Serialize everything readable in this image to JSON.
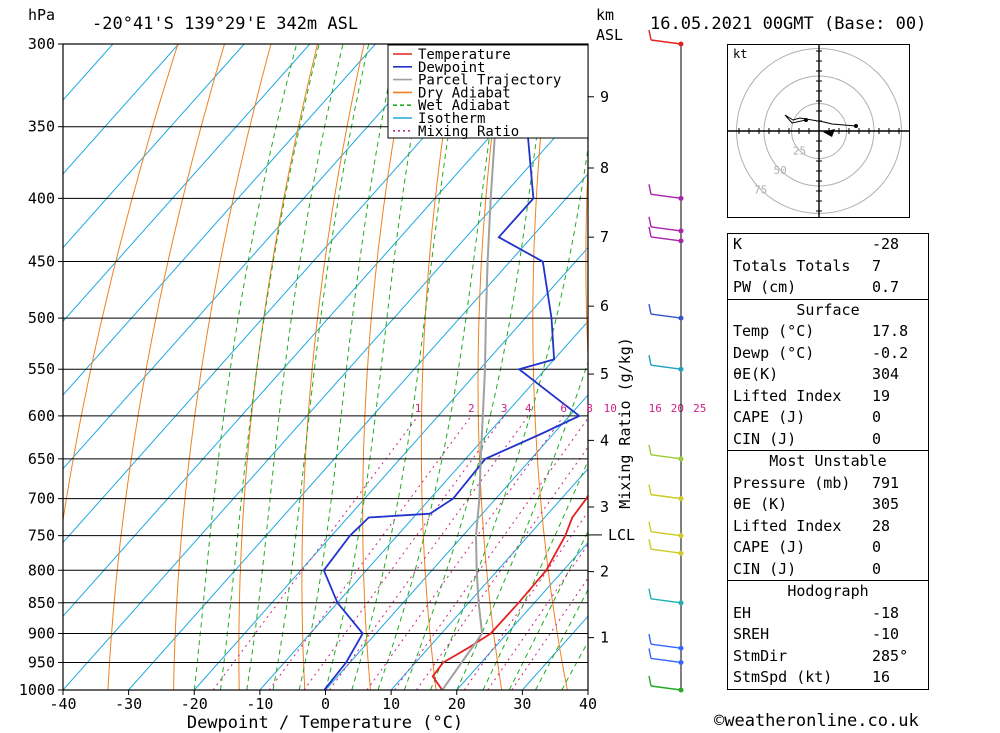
{
  "header": {
    "hpa_label": "hPa",
    "location": "-20°41'S 139°29'E 342m ASL",
    "km_label": "km",
    "asl_label": "ASL",
    "datetime": "16.05.2021 00GMT (Base: 00)"
  },
  "chart_data": {
    "type": "skew-t",
    "xlabel": "Dewpoint / Temperature (°C)",
    "ylabel_left": "hPa",
    "ylabel_mixing": "Mixing Ratio (g/kg)",
    "x_ticks": [
      -40,
      -30,
      -20,
      -10,
      0,
      10,
      20,
      30,
      40
    ],
    "pressure_levels": [
      300,
      350,
      400,
      450,
      500,
      550,
      600,
      650,
      700,
      750,
      800,
      850,
      900,
      950,
      1000
    ],
    "km_ticks": [
      {
        "label": "1",
        "p": 907
      },
      {
        "label": "2",
        "p": 802
      },
      {
        "label": "3",
        "p": 711
      },
      {
        "label": "4",
        "p": 628
      },
      {
        "label": "5",
        "p": 555
      },
      {
        "label": "6",
        "p": 489
      },
      {
        "label": "7",
        "p": 430
      },
      {
        "label": "8",
        "p": 378
      },
      {
        "label": "9",
        "p": 331
      }
    ],
    "lcl": {
      "label": "LCL",
      "p": 749
    },
    "mixing_ratio_labels": [
      "1",
      "2",
      "3",
      "4",
      "6",
      "8",
      "10",
      "16",
      "20",
      "25"
    ],
    "mixing_ratio_values": [
      1,
      2,
      3,
      4,
      6,
      8,
      10,
      16,
      20,
      25
    ],
    "legend": [
      "Temperature",
      "Dewpoint",
      "Parcel Trajectory",
      "Dry Adiabat",
      "Wet Adiabat",
      "Isotherm",
      "Mixing Ratio"
    ],
    "colors": {
      "temperature": "#e52222",
      "dewpoint": "#2233cc",
      "parcel": "#a0a0a0",
      "dry_adiabat": "#f08020",
      "wet_adiabat": "#22aa22",
      "isotherm": "#20a8e0",
      "mixing_ratio": "#cc2288"
    },
    "series": [
      {
        "name": "Temperature",
        "points": [
          [
            1000,
            17.8
          ],
          [
            975,
            14.5
          ],
          [
            950,
            14.2
          ],
          [
            925,
            16.0
          ],
          [
            900,
            17.5
          ],
          [
            850,
            17.6
          ],
          [
            800,
            17.4
          ],
          [
            750,
            15.6
          ],
          [
            725,
            14.2
          ],
          [
            700,
            13.8
          ],
          [
            650,
            11.7
          ],
          [
            600,
            8.4
          ],
          [
            550,
            4.2
          ],
          [
            500,
            0.8
          ],
          [
            450,
            -4.8
          ],
          [
            430,
            -7.0
          ],
          [
            420,
            -6.6
          ],
          [
            400,
            -7.6
          ],
          [
            350,
            -14.2
          ],
          [
            300,
            -22.4
          ]
        ]
      },
      {
        "name": "Dewpoint",
        "points": [
          [
            1000,
            -0.2
          ],
          [
            950,
            -0.6
          ],
          [
            900,
            -2.0
          ],
          [
            850,
            -10.0
          ],
          [
            800,
            -16.5
          ],
          [
            750,
            -17.2
          ],
          [
            725,
            -16.8
          ],
          [
            720,
            -8.0
          ],
          [
            700,
            -6.5
          ],
          [
            650,
            -7.0
          ],
          [
            620,
            -1.8
          ],
          [
            600,
            1.5
          ],
          [
            550,
            -14.0
          ],
          [
            540,
            -10.0
          ],
          [
            500,
            -16.0
          ],
          [
            450,
            -25.0
          ],
          [
            430,
            -35.0
          ],
          [
            400,
            -35.0
          ],
          [
            340,
            -48.0
          ],
          [
            320,
            -48.0
          ],
          [
            300,
            -42.0
          ]
        ]
      },
      {
        "name": "Parcel Trajectory",
        "points": [
          [
            1000,
            17.8
          ],
          [
            900,
            16.2
          ],
          [
            850,
            11.5
          ],
          [
            800,
            6.8
          ],
          [
            750,
            2.0
          ],
          [
            700,
            -2.5
          ],
          [
            650,
            -7.7
          ],
          [
            600,
            -13.2
          ],
          [
            550,
            -19.2
          ],
          [
            500,
            -26.0
          ],
          [
            450,
            -33.4
          ],
          [
            400,
            -41.5
          ],
          [
            350,
            -50.5
          ],
          [
            300,
            -58.0
          ]
        ]
      }
    ],
    "wind_barbs": [
      {
        "p": 1000,
        "color": "#22aa22"
      },
      {
        "p": 950,
        "color": "#3366ff"
      },
      {
        "p": 925,
        "color": "#3366ff"
      },
      {
        "p": 850,
        "color": "#20b0b0"
      },
      {
        "p": 775,
        "color": "#cccc22"
      },
      {
        "p": 750,
        "color": "#cccc22"
      },
      {
        "p": 700,
        "color": "#cccc22"
      },
      {
        "p": 650,
        "color": "#99cc33"
      },
      {
        "p": 550,
        "color": "#20a0c0"
      },
      {
        "p": 500,
        "color": "#3355cc"
      },
      {
        "p": 433,
        "color": "#aa22aa"
      },
      {
        "p": 425,
        "color": "#aa22aa"
      },
      {
        "p": 400,
        "color": "#aa22aa"
      },
      {
        "p": 300,
        "color": "#e52222"
      }
    ]
  },
  "hodograph": {
    "unit": "kt",
    "ring_labels": [
      "25",
      "50",
      "75"
    ]
  },
  "indices": {
    "top": [
      {
        "label": "K",
        "value": "-28"
      },
      {
        "label": "Totals Totals",
        "value": "7"
      },
      {
        "label": "PW (cm)",
        "value": "0.7"
      }
    ],
    "surface": {
      "title": "Surface",
      "rows": [
        {
          "label": "Temp (°C)",
          "value": "17.8"
        },
        {
          "label": "Dewp (°C)",
          "value": "-0.2"
        },
        {
          "label": "θE(K)",
          "value": "304"
        },
        {
          "label": "Lifted Index",
          "value": "19"
        },
        {
          "label": "CAPE (J)",
          "value": "0"
        },
        {
          "label": "CIN (J)",
          "value": "0"
        }
      ]
    },
    "most_unstable": {
      "title": "Most Unstable",
      "rows": [
        {
          "label": "Pressure (mb)",
          "value": "791"
        },
        {
          "label": "θE (K)",
          "value": "305"
        },
        {
          "label": "Lifted Index",
          "value": "28"
        },
        {
          "label": "CAPE (J)",
          "value": "0"
        },
        {
          "label": "CIN (J)",
          "value": "0"
        }
      ]
    },
    "hodograph": {
      "title": "Hodograph",
      "rows": [
        {
          "label": "EH",
          "value": "-18"
        },
        {
          "label": "SREH",
          "value": "-10"
        },
        {
          "label": "StmDir",
          "value": "285°"
        },
        {
          "label": "StmSpd (kt)",
          "value": "16"
        }
      ]
    }
  },
  "copyright": "©weatheronline.co.uk"
}
